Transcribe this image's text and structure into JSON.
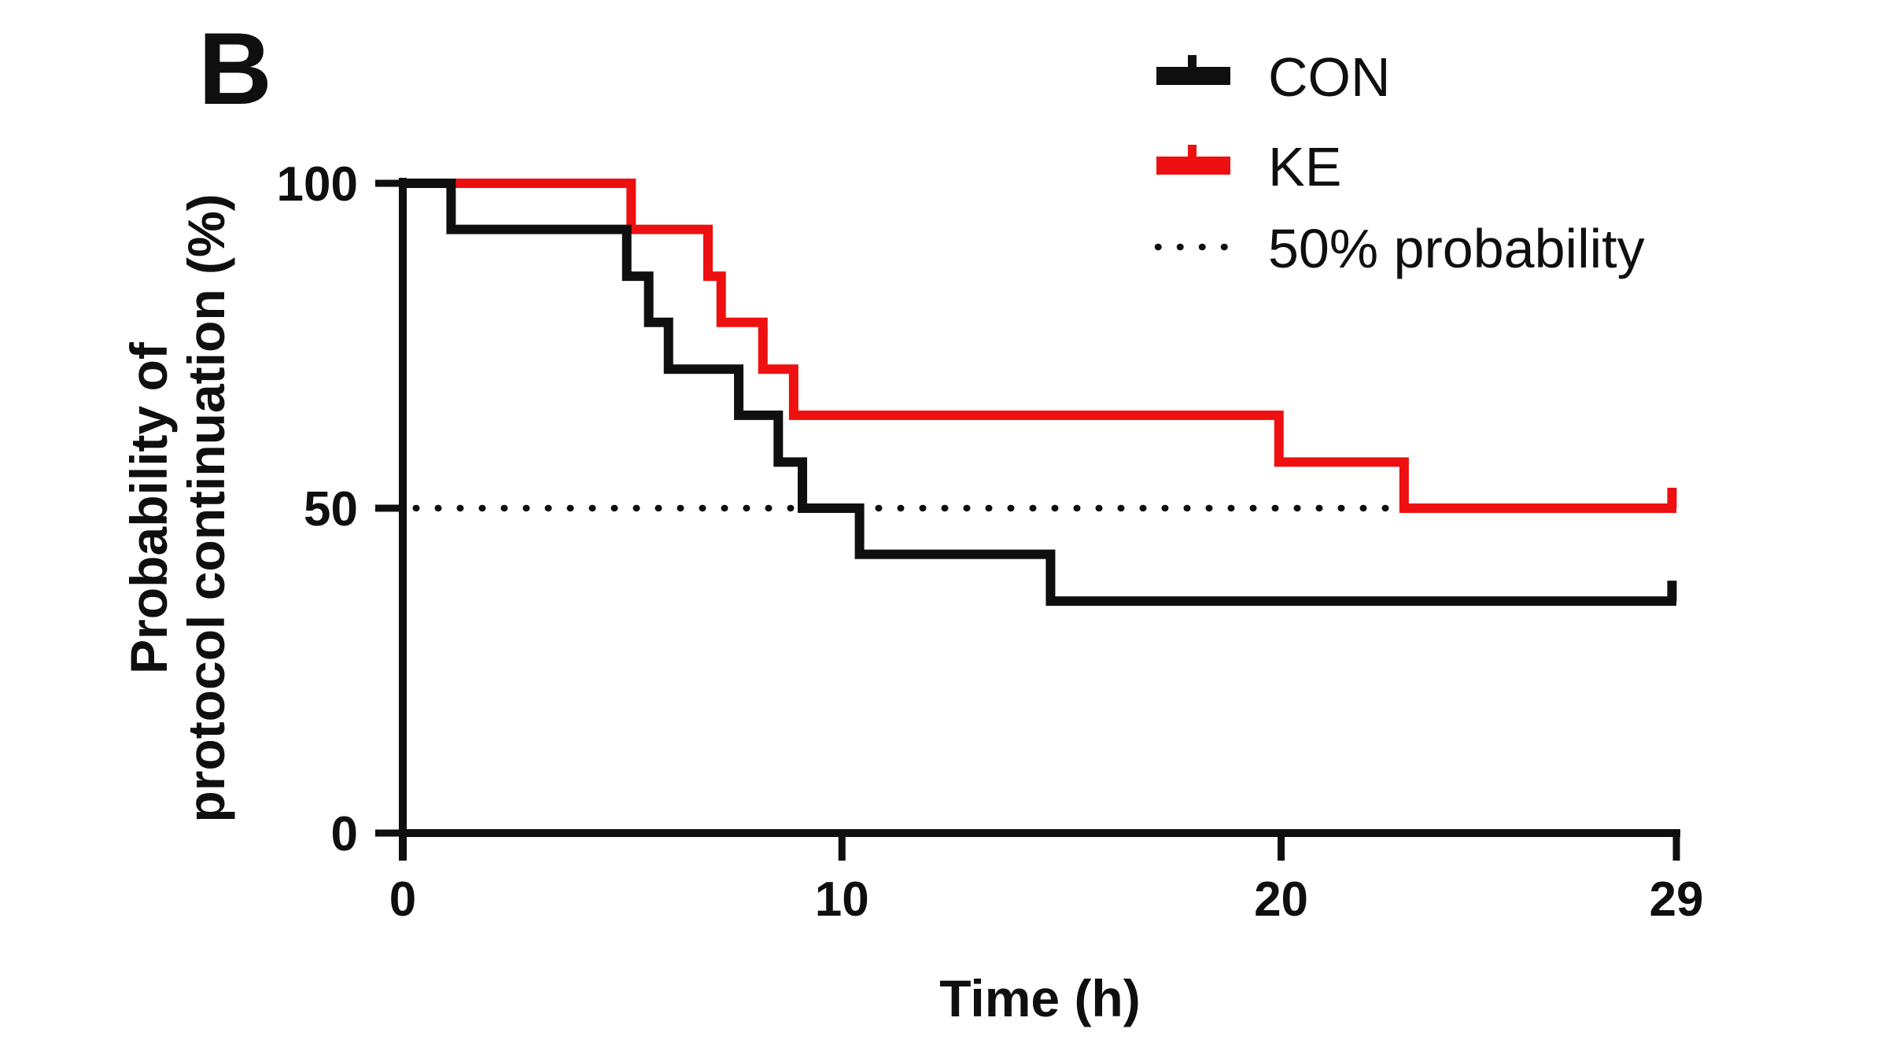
{
  "figure": {
    "panel_label": "B"
  },
  "chart_data": {
    "type": "line",
    "subtype": "kaplan-meier-step",
    "title": "B",
    "xlabel": "Time (h)",
    "ylabel_line1": "Probability of",
    "ylabel_line2": "protocol continuation (%)",
    "xlim": [
      0,
      29
    ],
    "ylim": [
      0,
      100
    ],
    "x_ticks": [
      0,
      10,
      20,
      29
    ],
    "y_ticks": [
      100,
      50,
      0
    ],
    "grid": false,
    "legend_position": "top-right",
    "axis_color": "#0f0f0f",
    "reference_line": {
      "y": 50,
      "style": "dotted",
      "color": "#0f0f0f",
      "x_start": 0.3,
      "x_end": 22.8
    },
    "series": [
      {
        "name": "CON",
        "color": "#0f0f0f",
        "end_censor_tick_x": 28.9,
        "steps": [
          [
            0,
            100
          ],
          [
            1.1,
            92.9
          ],
          [
            5.1,
            85.7
          ],
          [
            5.6,
            78.6
          ],
          [
            6.05,
            71.4
          ],
          [
            7.65,
            64.3
          ],
          [
            8.55,
            57.1
          ],
          [
            9.1,
            50
          ],
          [
            10.4,
            42.9
          ],
          [
            14.75,
            35.7
          ],
          [
            29,
            35.7
          ]
        ]
      },
      {
        "name": "KE",
        "color": "#ee1010",
        "end_censor_tick_x": 28.9,
        "steps": [
          [
            0,
            100
          ],
          [
            5.2,
            92.9
          ],
          [
            6.95,
            85.7
          ],
          [
            7.25,
            78.6
          ],
          [
            8.2,
            71.4
          ],
          [
            8.9,
            64.3
          ],
          [
            19.95,
            57.1
          ],
          [
            22.8,
            50
          ],
          [
            29,
            50
          ]
        ]
      }
    ]
  },
  "legend": {
    "items": [
      {
        "label": "CON",
        "marker": "line-with-tick",
        "color": "#0f0f0f"
      },
      {
        "label": "KE",
        "marker": "line-with-tick",
        "color": "#ee1010"
      },
      {
        "label": "50% probability",
        "marker": "dotted-line",
        "color": "#0f0f0f"
      }
    ]
  }
}
